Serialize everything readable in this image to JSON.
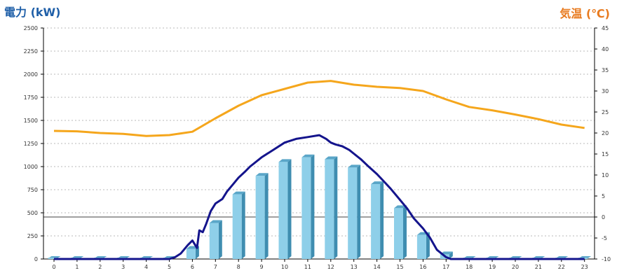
{
  "chart_data": {
    "type": "bar",
    "left_axis_title": "電力 (kW)",
    "right_axis_title": "気温 (℃)",
    "x_ticks": [
      "0",
      "1",
      "2",
      "3",
      "4",
      "5",
      "6",
      "7",
      "8",
      "9",
      "10",
      "11",
      "12",
      "13",
      "14",
      "15",
      "16",
      "17",
      "18",
      "19",
      "20",
      "21",
      "22",
      "23"
    ],
    "y_left": {
      "min": 0,
      "max": 2500,
      "ticks": [
        0,
        250,
        500,
        750,
        1000,
        1250,
        1500,
        1750,
        2000,
        2250,
        2500
      ]
    },
    "y_right": {
      "min": -10,
      "max": 45,
      "ticks": [
        -10,
        -5,
        0,
        5,
        10,
        15,
        20,
        25,
        30,
        35,
        40,
        45
      ]
    },
    "grid": "horizontal dotted",
    "series": [
      {
        "type": "bar",
        "axis": "left",
        "color": "#8ecfe9",
        "x": [
          0,
          1,
          2,
          3,
          4,
          5,
          6,
          7,
          8,
          9,
          10,
          11,
          12,
          13,
          14,
          15,
          16,
          17,
          18,
          19,
          20,
          21,
          22,
          23
        ],
        "values": [
          0,
          0,
          0,
          0,
          0,
          0,
          110,
          390,
          700,
          900,
          1050,
          1100,
          1080,
          990,
          810,
          550,
          260,
          50,
          0,
          0,
          0,
          0,
          0,
          0
        ]
      },
      {
        "type": "line",
        "axis": "left",
        "color": "#14148c",
        "x": [
          0,
          5,
          5.25,
          5.5,
          5.8,
          6,
          6.2,
          6.3,
          6.45,
          6.6,
          6.8,
          7,
          7.3,
          7.5,
          7.8,
          8,
          8.3,
          8.5,
          9,
          9.5,
          10,
          10.5,
          11,
          11.5,
          11.8,
          12,
          12.2,
          12.5,
          12.8,
          13,
          13.3,
          13.6,
          14,
          14.3,
          14.6,
          15,
          15.3,
          15.6,
          16,
          16.3,
          16.6,
          17,
          17.2,
          18,
          23
        ],
        "values": [
          0,
          0,
          20,
          60,
          150,
          200,
          120,
          310,
          290,
          380,
          520,
          600,
          650,
          730,
          820,
          880,
          950,
          1000,
          1100,
          1180,
          1260,
          1300,
          1320,
          1340,
          1300,
          1260,
          1240,
          1220,
          1180,
          1140,
          1080,
          1010,
          920,
          840,
          760,
          640,
          550,
          440,
          330,
          230,
          100,
          20,
          0,
          0,
          0
        ]
      },
      {
        "type": "line",
        "axis": "right",
        "color": "#f5a61c",
        "x": [
          0,
          1,
          2,
          3,
          4,
          5,
          6,
          7,
          8,
          9,
          10,
          11,
          12,
          13,
          14,
          15,
          16,
          17,
          18,
          19,
          20,
          21,
          22,
          23
        ],
        "values": [
          20.5,
          20.4,
          20.0,
          19.8,
          19.3,
          19.5,
          20.3,
          23.5,
          26.5,
          29.0,
          30.5,
          32.0,
          32.4,
          31.5,
          31.0,
          30.7,
          30.0,
          28.0,
          26.2,
          25.4,
          24.4,
          23.3,
          22.0,
          21.2
        ]
      }
    ]
  }
}
